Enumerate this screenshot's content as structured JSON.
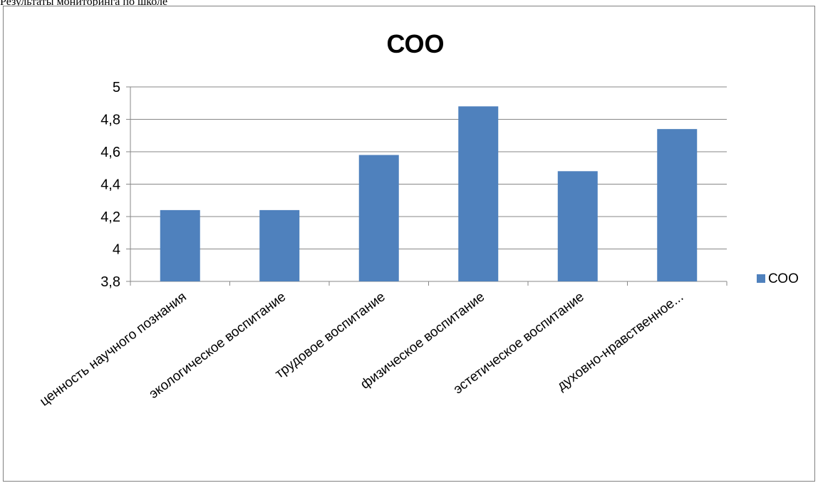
{
  "page": {
    "caption": "Результаты мониторинга по школе"
  },
  "chart_data": {
    "type": "bar",
    "title": "СОО",
    "xlabel": "",
    "ylabel": "",
    "categories": [
      "ценность научного познания",
      "экологическое воспитание",
      "трудовое воспитание",
      "физическое воспитание",
      "эстетическое воспитание",
      "духовно-нравственное..."
    ],
    "series": [
      {
        "name": "СОО",
        "color": "#4F81BD",
        "values": [
          4.24,
          4.24,
          4.58,
          4.88,
          4.48,
          4.74
        ]
      }
    ],
    "ylim": [
      3.8,
      5
    ],
    "yticks": [
      3.8,
      4,
      4.2,
      4.4,
      4.6,
      4.8,
      5
    ],
    "ytick_labels": [
      "3,8",
      "4",
      "4,2",
      "4,4",
      "4,6",
      "4,8",
      "5"
    ],
    "grid": true,
    "legend": "right",
    "colors": {
      "bar": "#4F81BD",
      "grid": "#878787",
      "frame": "#808080"
    }
  }
}
